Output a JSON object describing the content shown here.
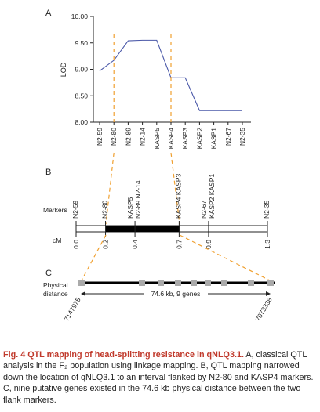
{
  "panel_labels": {
    "a": "A",
    "b": "B",
    "c": "C"
  },
  "chart_data": {
    "type": "line",
    "ylabel": "LOD",
    "ylim": [
      8.0,
      10.0
    ],
    "yticks": [
      "8.00",
      "8.50",
      "9.00",
      "9.50",
      "10.00"
    ],
    "categories": [
      "N2-59",
      "N2-80",
      "N2-89",
      "N2-14",
      "KASP5",
      "KASP4",
      "KASP3",
      "KASP2",
      "KASP1",
      "N2-67",
      "N2-35"
    ],
    "series": [
      {
        "values": [
          8.97,
          9.17,
          9.54,
          9.55,
          9.55,
          8.84,
          8.84,
          8.22,
          8.22,
          8.22,
          8.22
        ]
      }
    ],
    "flank_markers": [
      "N2-80",
      "KASP4"
    ],
    "line_color": "#4a58a8",
    "dash_color": "#f0a030"
  },
  "linkage_map": {
    "markers_label": "Markers",
    "cm_label": "cM",
    "groups": [
      {
        "labels": [
          "N2-59"
        ],
        "cm": "0.0"
      },
      {
        "labels": [
          "N2-80"
        ],
        "cm": "0.2"
      },
      {
        "labels": [
          "N2-89 N2-14",
          "KASP5"
        ],
        "cm": "0.4"
      },
      {
        "labels": [
          "KASP4 KASP3"
        ],
        "cm": "0.7"
      },
      {
        "labels": [
          "KASP2 KASP1",
          "N2-67"
        ],
        "cm": "0.9"
      },
      {
        "labels": [
          "N2-35"
        ],
        "cm": "1.3"
      }
    ]
  },
  "physical_map": {
    "label_line1": "Physical",
    "label_line2": "distance",
    "left_coord": "7147975",
    "right_coord": "7073338",
    "span_text": "74.6 kb, 9 genes",
    "gene_color": "#aaaaaa"
  },
  "caption": {
    "head": "Fig. 4  QTL mapping of head-splitting resistance in qNLQ3.1.",
    "body": " A, classical QTL analysis in the F₂ population using linkage mapping. B, QTL mapping narrowed down the location of qNLQ3.1 to an interval flanked by N2-80 and KASP4 markers. C, nine putative genes existed in the 74.6 kb physical distance between the two flank markers."
  }
}
